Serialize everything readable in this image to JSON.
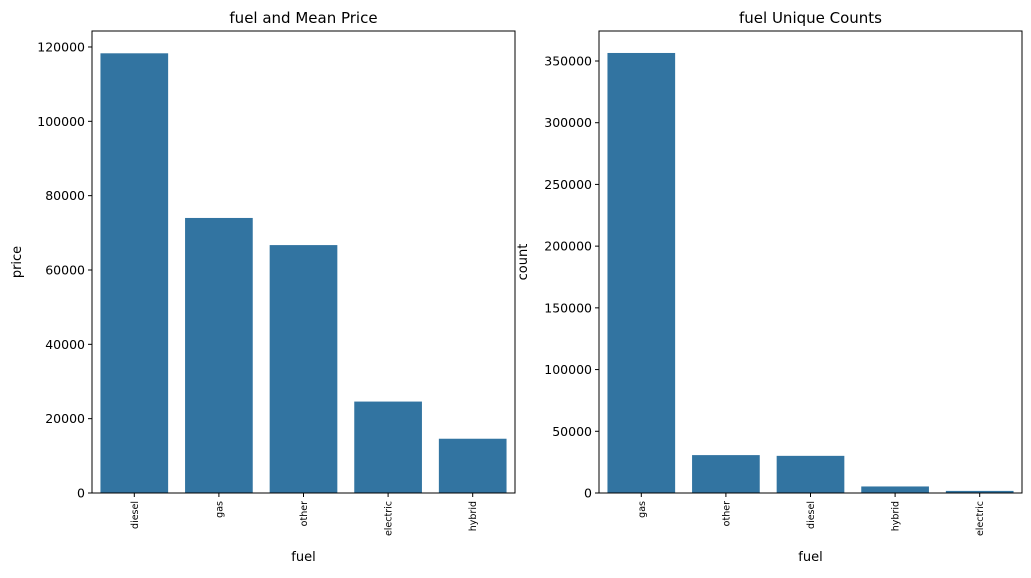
{
  "colors": {
    "bar": "#3274a1",
    "axis": "#000000",
    "background": "#ffffff"
  },
  "chart_data": [
    {
      "type": "bar",
      "title": "fuel and Mean Price",
      "xlabel": "fuel",
      "ylabel": "price",
      "categories": [
        "diesel",
        "gas",
        "other",
        "electric",
        "hybrid"
      ],
      "values": [
        118300,
        74000,
        66700,
        24600,
        14600
      ],
      "ylim": [
        0,
        124300
      ],
      "yticks": [
        0,
        20000,
        40000,
        60000,
        80000,
        100000,
        120000
      ],
      "grid": false,
      "legend": "none"
    },
    {
      "type": "bar",
      "title": "fuel Unique Counts",
      "xlabel": "fuel",
      "ylabel": "count",
      "categories": [
        "gas",
        "other",
        "diesel",
        "hybrid",
        "electric"
      ],
      "values": [
        356500,
        30700,
        30100,
        5300,
        1700
      ],
      "ylim": [
        0,
        374300
      ],
      "yticks": [
        0,
        50000,
        100000,
        150000,
        200000,
        250000,
        300000,
        350000
      ],
      "grid": false,
      "legend": "none"
    }
  ]
}
